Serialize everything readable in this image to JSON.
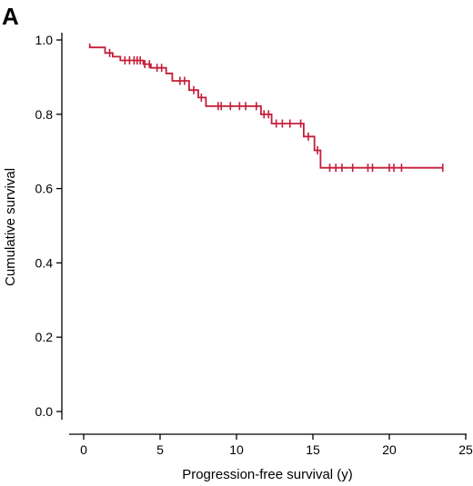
{
  "panel_label": "A",
  "chart_data": {
    "type": "line",
    "title": "",
    "xlabel": "Progression-free survival (y)",
    "ylabel": "Cumulative survival",
    "xlim": [
      0,
      25
    ],
    "ylim": [
      0.0,
      1.0
    ],
    "x_ticks": [
      0,
      5,
      10,
      15,
      20,
      25
    ],
    "y_ticks": [
      0.0,
      0.2,
      0.4,
      0.6,
      0.8,
      1.0
    ],
    "x_tick_labels": [
      "0",
      "5",
      "10",
      "15",
      "20",
      "25"
    ],
    "y_tick_labels": [
      "0.0",
      "0.2",
      "0.4",
      "0.6",
      "0.8",
      "1.0"
    ],
    "grid": false,
    "line_color": "#c41e3a",
    "series": [
      {
        "step": [
          [
            0.4,
            0.99
          ],
          [
            0.4,
            0.98
          ],
          [
            1.4,
            0.98
          ],
          [
            1.4,
            0.965
          ],
          [
            1.9,
            0.965
          ],
          [
            1.9,
            0.955
          ],
          [
            2.4,
            0.955
          ],
          [
            2.4,
            0.945
          ],
          [
            3.9,
            0.945
          ],
          [
            3.9,
            0.935
          ],
          [
            4.4,
            0.935
          ],
          [
            4.4,
            0.925
          ],
          [
            5.4,
            0.925
          ],
          [
            5.4,
            0.91
          ],
          [
            5.8,
            0.91
          ],
          [
            5.8,
            0.89
          ],
          [
            6.9,
            0.89
          ],
          [
            6.9,
            0.865
          ],
          [
            7.5,
            0.865
          ],
          [
            7.5,
            0.845
          ],
          [
            8.0,
            0.845
          ],
          [
            8.0,
            0.822
          ],
          [
            11.6,
            0.822
          ],
          [
            11.6,
            0.8
          ],
          [
            12.3,
            0.8
          ],
          [
            12.3,
            0.775
          ],
          [
            14.4,
            0.775
          ],
          [
            14.4,
            0.74
          ],
          [
            15.1,
            0.74
          ],
          [
            15.1,
            0.703
          ],
          [
            15.5,
            0.703
          ],
          [
            15.5,
            0.656
          ],
          [
            23.5,
            0.656
          ]
        ],
        "censored": [
          [
            1.7,
            0.965
          ],
          [
            2.7,
            0.945
          ],
          [
            3.0,
            0.945
          ],
          [
            3.3,
            0.945
          ],
          [
            3.5,
            0.945
          ],
          [
            3.7,
            0.945
          ],
          [
            4.0,
            0.935
          ],
          [
            4.3,
            0.935
          ],
          [
            4.8,
            0.925
          ],
          [
            5.1,
            0.925
          ],
          [
            6.3,
            0.89
          ],
          [
            6.6,
            0.89
          ],
          [
            7.2,
            0.865
          ],
          [
            7.7,
            0.845
          ],
          [
            8.8,
            0.822
          ],
          [
            9.0,
            0.822
          ],
          [
            9.6,
            0.822
          ],
          [
            10.2,
            0.822
          ],
          [
            10.6,
            0.822
          ],
          [
            11.3,
            0.822
          ],
          [
            11.8,
            0.8
          ],
          [
            12.1,
            0.8
          ],
          [
            12.6,
            0.775
          ],
          [
            13.0,
            0.775
          ],
          [
            13.5,
            0.775
          ],
          [
            14.2,
            0.775
          ],
          [
            14.7,
            0.74
          ],
          [
            15.3,
            0.703
          ],
          [
            16.1,
            0.656
          ],
          [
            16.5,
            0.656
          ],
          [
            16.9,
            0.656
          ],
          [
            17.6,
            0.656
          ],
          [
            18.6,
            0.656
          ],
          [
            18.9,
            0.656
          ],
          [
            20.0,
            0.656
          ],
          [
            20.3,
            0.656
          ],
          [
            20.8,
            0.656
          ],
          [
            23.5,
            0.656
          ]
        ]
      }
    ]
  }
}
